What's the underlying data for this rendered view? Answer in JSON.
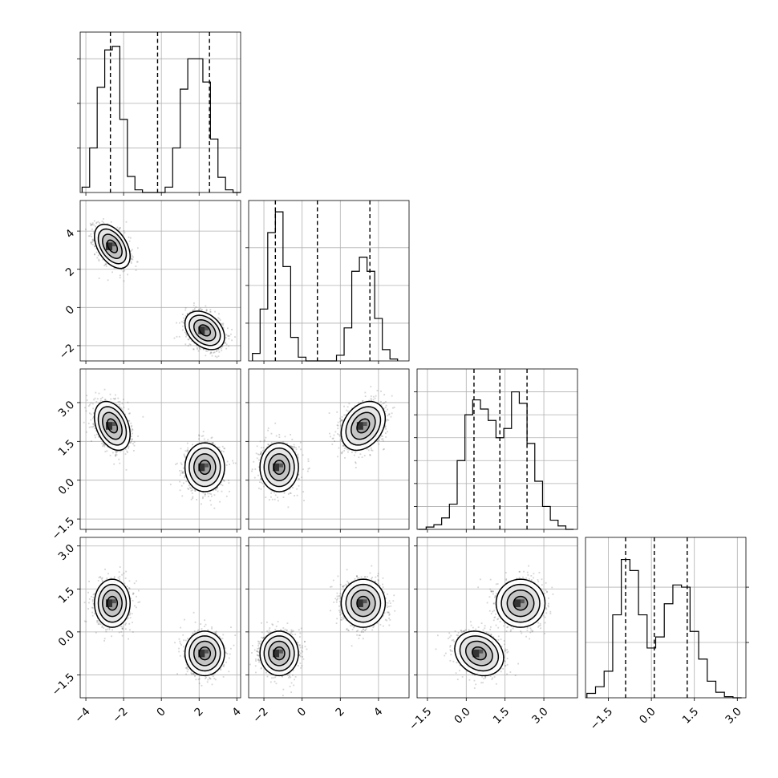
{
  "chart_data": {
    "type": "corner",
    "title": "",
    "params": [
      {
        "range": [
          -4.3,
          4.2
        ],
        "ticks": [
          -4,
          -2,
          0,
          2,
          4
        ],
        "tick_labels": [
          "−4",
          "−2",
          "0",
          "2",
          "4"
        ],
        "quantiles": [
          -2.7,
          -0.2,
          2.55
        ],
        "hist_x": [
          -4.0,
          -3.6,
          -3.2,
          -2.8,
          -2.4,
          -2.0,
          -1.6,
          -1.2,
          -0.8,
          -0.4,
          0.0,
          0.4,
          0.8,
          1.2,
          1.6,
          2.0,
          2.4,
          2.8,
          3.2,
          3.6,
          4.0
        ],
        "hist_y": [
          0.06,
          0.5,
          1.18,
          1.6,
          1.64,
          0.82,
          0.18,
          0.03,
          0.0,
          0.0,
          0.0,
          0.06,
          0.5,
          1.16,
          1.5,
          1.5,
          1.24,
          0.6,
          0.17,
          0.03,
          0.0
        ],
        "hist_ylim": [
          0,
          1.8
        ],
        "hist_grid": [
          0.5,
          1.0,
          1.5
        ]
      },
      {
        "range": [
          -2.8,
          5.6
        ],
        "ticks": [
          -2,
          0,
          2,
          4
        ],
        "tick_labels": [
          "−2",
          "0",
          "2",
          "4"
        ],
        "quantiles": [
          -1.4,
          0.8,
          3.55
        ],
        "hist_x": [
          -2.4,
          -2.0,
          -1.6,
          -1.2,
          -0.8,
          -0.4,
          0.0,
          0.4,
          0.8,
          1.2,
          1.6,
          2.0,
          2.4,
          2.8,
          3.2,
          3.6,
          4.0,
          4.4,
          4.8
        ],
        "hist_y": [
          0.08,
          0.55,
          1.36,
          1.58,
          1.0,
          0.25,
          0.04,
          0.0,
          0.0,
          0.0,
          0.0,
          0.06,
          0.35,
          0.95,
          1.1,
          0.95,
          0.45,
          0.12,
          0.02
        ],
        "hist_ylim": [
          0,
          1.7
        ],
        "hist_grid": [
          0.4,
          0.8,
          1.2
        ]
      },
      {
        "range": [
          -1.9,
          4.3
        ],
        "ticks": [
          -1.5,
          0.0,
          1.5,
          3.0
        ],
        "tick_labels": [
          "−1.5",
          "0.0",
          "1.5",
          "3.0"
        ],
        "quantiles": [
          0.3,
          1.3,
          2.35
        ],
        "hist_x": [
          -1.7,
          -1.4,
          -1.1,
          -0.8,
          -0.5,
          -0.2,
          0.1,
          0.4,
          0.7,
          1.0,
          1.3,
          1.6,
          1.9,
          2.2,
          2.5,
          2.8,
          3.1,
          3.4,
          3.7,
          4.0
        ],
        "hist_y": [
          0.0,
          0.02,
          0.04,
          0.1,
          0.22,
          0.6,
          1.0,
          1.13,
          1.05,
          0.95,
          0.8,
          0.88,
          1.2,
          1.1,
          0.75,
          0.42,
          0.2,
          0.08,
          0.03,
          0.0
        ],
        "hist_ylim": [
          0,
          1.4
        ],
        "hist_grid": [
          0.2,
          0.4,
          0.6,
          0.8,
          1.0,
          1.2
        ]
      },
      {
        "range": [
          -2.3,
          3.3
        ],
        "ticks": [
          -1.5,
          0.0,
          1.5,
          3.0
        ],
        "tick_labels": [
          "−1.5",
          "0.0",
          "1.5",
          "3.0"
        ],
        "quantiles": [
          -0.9,
          0.1,
          1.25
        ],
        "hist_x": [
          -2.1,
          -1.8,
          -1.5,
          -1.2,
          -0.9,
          -0.6,
          -0.3,
          0.0,
          0.3,
          0.6,
          0.9,
          1.2,
          1.5,
          1.8,
          2.1,
          2.4,
          2.7,
          3.0
        ],
        "hist_y": [
          0.04,
          0.1,
          0.24,
          0.75,
          1.25,
          1.15,
          0.75,
          0.45,
          0.55,
          0.85,
          1.02,
          1.0,
          0.6,
          0.35,
          0.15,
          0.05,
          0.01,
          0.0
        ],
        "hist_ylim": [
          0,
          1.45
        ],
        "hist_grid": [
          0.5,
          1.0
        ]
      }
    ],
    "modes": [
      {
        "weight": 0.5,
        "mean": [
          -2.6,
          3.2,
          2.1,
          1.0
        ],
        "sd": [
          0.45,
          0.55,
          0.45,
          0.4
        ],
        "corr": [
          [
            1,
            -0.45,
            -0.35,
            0
          ],
          [
            -0.45,
            1,
            0.3,
            0
          ],
          [
            -0.35,
            0.3,
            1,
            0
          ],
          [
            0,
            0,
            0,
            1
          ]
        ]
      },
      {
        "weight": 0.5,
        "mean": [
          2.3,
          -1.2,
          0.5,
          -0.75
        ],
        "sd": [
          0.5,
          0.48,
          0.45,
          0.37
        ],
        "corr": [
          [
            1,
            -0.35,
            0,
            0
          ],
          [
            -0.35,
            1,
            0,
            0
          ],
          [
            0,
            0,
            1,
            -0.2
          ],
          [
            0,
            0,
            -0.2,
            1
          ]
        ]
      }
    ],
    "contour_levels_sigma": [
      0.6,
      1.15,
      1.65,
      2.1
    ],
    "samples_per_panel": 2200
  }
}
